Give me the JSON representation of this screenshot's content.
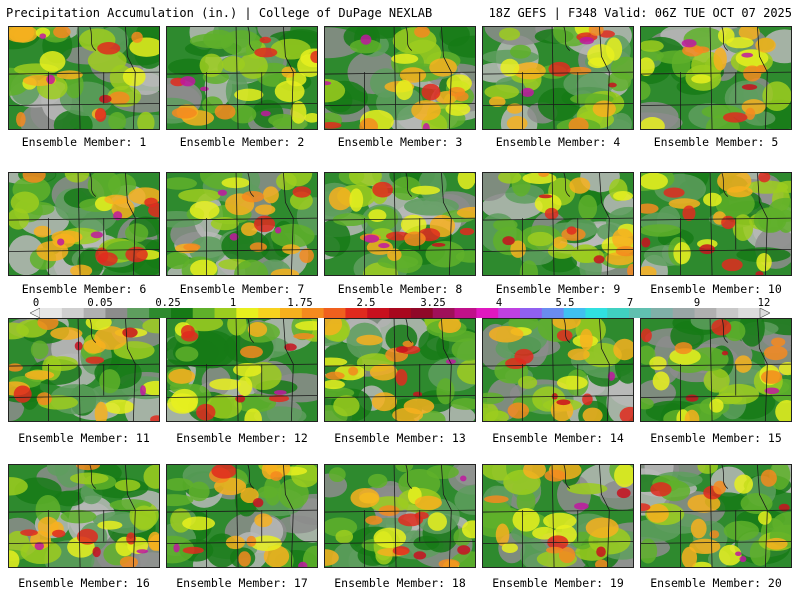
{
  "header": {
    "left_title": "Precipitation Accumulation (in.) | College of DuPage NEXLAB",
    "right_title": "18Z GEFS | F348 Valid: 06Z TUE OCT 07 2025"
  },
  "legend": {
    "tick_labels": [
      "0",
      "0.05",
      "0.25",
      "1",
      "1.75",
      "2.5",
      "3.25",
      "4",
      "5.5",
      "7",
      "9",
      "12"
    ],
    "colors": [
      "#e6e6e6",
      "#cfcfcf",
      "#b0b0b0",
      "#8c8c8c",
      "#5e9e5e",
      "#2e8a2e",
      "#167a16",
      "#5fb02a",
      "#9ccd1f",
      "#e8f01e",
      "#f7d21e",
      "#f7b01e",
      "#f58a1e",
      "#f0601e",
      "#e02a1e",
      "#c8101e",
      "#a8081e",
      "#900828",
      "#a0105a",
      "#c0108a",
      "#e018c0",
      "#c040e0",
      "#9060f0",
      "#6a8cf0",
      "#40c0f0",
      "#30e0e0",
      "#40d0c0",
      "#60c0b0",
      "#80b0a8",
      "#9aa6a6",
      "#b0b0b0",
      "#c8c8c8",
      "#dcdcdc"
    ]
  },
  "members": [
    {
      "label": "Ensemble Member: 1"
    },
    {
      "label": "Ensemble Member: 2"
    },
    {
      "label": "Ensemble Member: 3"
    },
    {
      "label": "Ensemble Member: 4"
    },
    {
      "label": "Ensemble Member: 5"
    },
    {
      "label": "Ensemble Member: 6"
    },
    {
      "label": "Ensemble Member: 7"
    },
    {
      "label": "Ensemble Member: 8"
    },
    {
      "label": "Ensemble Member: 9"
    },
    {
      "label": "Ensemble Member: 10"
    },
    {
      "label": "Ensemble Member: 11"
    },
    {
      "label": "Ensemble Member: 12"
    },
    {
      "label": "Ensemble Member: 13"
    },
    {
      "label": "Ensemble Member: 14"
    },
    {
      "label": "Ensemble Member: 15"
    },
    {
      "label": "Ensemble Member: 16"
    },
    {
      "label": "Ensemble Member: 17"
    },
    {
      "label": "Ensemble Member: 18"
    },
    {
      "label": "Ensemble Member: 19"
    },
    {
      "label": "Ensemble Member: 20"
    }
  ]
}
